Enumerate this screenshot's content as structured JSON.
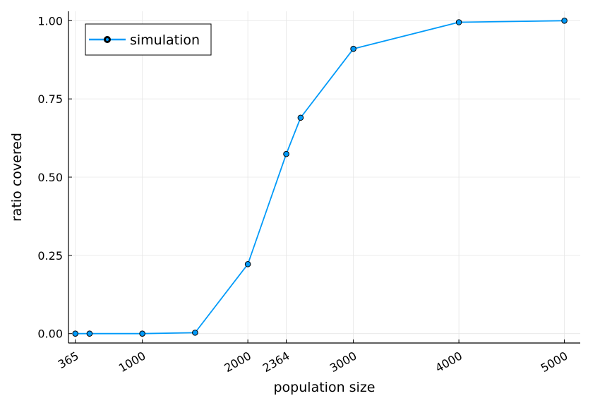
{
  "chart_data": {
    "type": "line",
    "xlabel": "population size",
    "ylabel": "ratio covered",
    "xlim": [
      300,
      5150
    ],
    "ylim": [
      -0.03,
      1.03
    ],
    "x_ticks": [
      365,
      1000,
      2000,
      2364,
      3000,
      4000,
      5000
    ],
    "y_ticks": [
      0.0,
      0.25,
      0.5,
      0.75,
      1.0
    ],
    "y_tick_labels": [
      "0.00",
      "0.25",
      "0.50",
      "0.75",
      "1.00"
    ],
    "grid": true,
    "legend_position": "top-left",
    "series": [
      {
        "name": "simulation",
        "color": "#009af9",
        "marker": "circle",
        "x": [
          365,
          500,
          1000,
          1500,
          2000,
          2364,
          2500,
          3000,
          4000,
          5000
        ],
        "y": [
          0.0,
          0.0,
          0.0,
          0.003,
          0.222,
          0.574,
          0.69,
          0.91,
          0.995,
          1.0
        ]
      }
    ]
  }
}
